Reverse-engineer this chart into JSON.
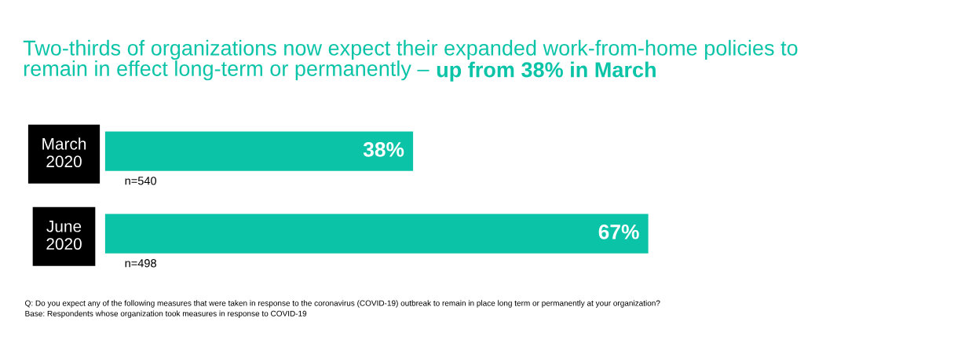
{
  "chart_data": {
    "type": "bar",
    "orientation": "horizontal",
    "title": "Two-thirds of organizations now expect their expanded work-from-home policies to\nremain in effect long-term or permanently – ",
    "subtitle": "up from 38% in March",
    "categories": [
      "March\n2020",
      "June\n2020"
    ],
    "values": [
      38,
      67
    ],
    "color": "#0bc4a8",
    "value_labels": [
      "38%",
      "67%"
    ],
    "tick_labels": "y",
    "grid": false,
    "legend": false,
    "annotations": [
      "n=540",
      "n=498",
      "Q: Do you expect any of the following measures that were taken in response to the coronavirus (COVID-19) outbreak to remain in place long term or permanently at your organization?",
      "Base: Respondents whose organization took measures in response to COVID-19"
    ]
  }
}
